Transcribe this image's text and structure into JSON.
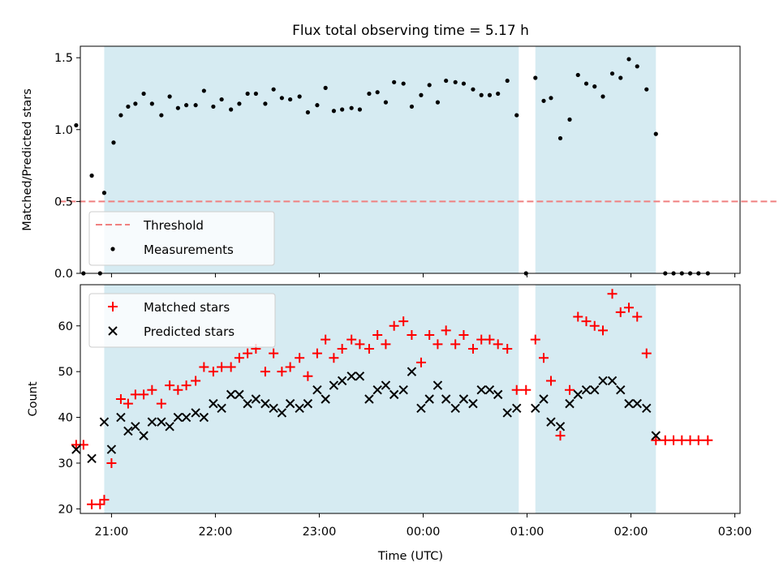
{
  "title": "Flux total observing time = 5.17 h",
  "colors": {
    "shade": "#add8e6",
    "threshold": "#f08080",
    "measurement": "#000000",
    "matched": "#ff0000",
    "predicted": "#000000"
  },
  "chart_data": [
    {
      "type": "scatter",
      "name": "ratio-panel",
      "ylabel": "Matched/Predicted stars",
      "ylim": [
        0,
        1.58
      ],
      "yticks": [
        0,
        0.5,
        1.0,
        1.5
      ],
      "ytick_labels": [
        "0.0",
        "0.5",
        "1.0",
        "1.5"
      ],
      "x_unit": "hours since 20:00 UTC",
      "xlim": [
        0.7,
        7.05
      ],
      "shaded_spans": [
        [
          0.93,
          4.92
        ],
        [
          5.08,
          6.24
        ]
      ],
      "threshold": {
        "label": "Threshold",
        "value": 0.5,
        "x_range": [
          0.5,
          7.4
        ]
      },
      "legend": {
        "position": "lower-left",
        "entries": [
          "Threshold",
          "Measurements"
        ]
      },
      "series": [
        {
          "name": "Measurements",
          "marker": "dot",
          "points": [
            [
              0.66,
              1.03
            ],
            [
              0.73,
              0.0
            ],
            [
              0.81,
              0.68
            ],
            [
              0.89,
              0.0
            ],
            [
              0.93,
              0.56
            ],
            [
              1.02,
              0.91
            ],
            [
              1.09,
              1.1
            ],
            [
              1.16,
              1.16
            ],
            [
              1.23,
              1.18
            ],
            [
              1.31,
              1.25
            ],
            [
              1.39,
              1.18
            ],
            [
              1.48,
              1.1
            ],
            [
              1.56,
              1.23
            ],
            [
              1.64,
              1.15
            ],
            [
              1.72,
              1.17
            ],
            [
              1.81,
              1.17
            ],
            [
              1.89,
              1.27
            ],
            [
              1.98,
              1.16
            ],
            [
              2.06,
              1.21
            ],
            [
              2.15,
              1.14
            ],
            [
              2.23,
              1.18
            ],
            [
              2.31,
              1.25
            ],
            [
              2.39,
              1.25
            ],
            [
              2.48,
              1.18
            ],
            [
              2.56,
              1.28
            ],
            [
              2.64,
              1.22
            ],
            [
              2.72,
              1.21
            ],
            [
              2.81,
              1.23
            ],
            [
              2.89,
              1.12
            ],
            [
              2.98,
              1.17
            ],
            [
              3.06,
              1.29
            ],
            [
              3.14,
              1.13
            ],
            [
              3.22,
              1.14
            ],
            [
              3.31,
              1.15
            ],
            [
              3.39,
              1.14
            ],
            [
              3.48,
              1.25
            ],
            [
              3.56,
              1.26
            ],
            [
              3.64,
              1.19
            ],
            [
              3.72,
              1.33
            ],
            [
              3.81,
              1.32
            ],
            [
              3.89,
              1.16
            ],
            [
              3.98,
              1.24
            ],
            [
              4.06,
              1.31
            ],
            [
              4.14,
              1.19
            ],
            [
              4.22,
              1.34
            ],
            [
              4.31,
              1.33
            ],
            [
              4.39,
              1.32
            ],
            [
              4.48,
              1.28
            ],
            [
              4.56,
              1.24
            ],
            [
              4.64,
              1.24
            ],
            [
              4.72,
              1.25
            ],
            [
              4.81,
              1.34
            ],
            [
              4.9,
              1.1
            ],
            [
              4.99,
              0.0
            ],
            [
              5.08,
              1.36
            ],
            [
              5.16,
              1.2
            ],
            [
              5.23,
              1.22
            ],
            [
              5.32,
              0.94
            ],
            [
              5.41,
              1.07
            ],
            [
              5.49,
              1.38
            ],
            [
              5.57,
              1.32
            ],
            [
              5.65,
              1.3
            ],
            [
              5.73,
              1.23
            ],
            [
              5.82,
              1.39
            ],
            [
              5.9,
              1.36
            ],
            [
              5.98,
              1.49
            ],
            [
              6.06,
              1.44
            ],
            [
              6.15,
              1.28
            ],
            [
              6.24,
              0.97
            ],
            [
              6.33,
              0.0
            ],
            [
              6.41,
              0.0
            ],
            [
              6.49,
              0.0
            ],
            [
              6.57,
              0.0
            ],
            [
              6.65,
              0.0
            ],
            [
              6.74,
              0.0
            ]
          ]
        }
      ]
    },
    {
      "type": "scatter",
      "name": "count-panel",
      "xlabel": "Time (UTC)",
      "ylabel": "Count",
      "ylim": [
        19,
        69
      ],
      "yticks": [
        20,
        30,
        40,
        50,
        60
      ],
      "ytick_labels": [
        "20",
        "30",
        "40",
        "50",
        "60"
      ],
      "x_unit": "hours since 20:00 UTC",
      "xlim": [
        0.7,
        7.05
      ],
      "xticks": [
        1,
        2,
        3,
        4,
        5,
        6,
        7
      ],
      "xtick_labels": [
        "21:00",
        "22:00",
        "23:00",
        "00:00",
        "01:00",
        "02:00",
        "03:00"
      ],
      "shaded_spans": [
        [
          0.93,
          4.92
        ],
        [
          5.08,
          6.24
        ]
      ],
      "legend": {
        "position": "upper-left",
        "entries": [
          "Matched stars",
          "Predicted stars"
        ]
      },
      "series": [
        {
          "name": "Matched stars",
          "marker": "plus",
          "points": [
            [
              0.66,
              34
            ],
            [
              0.73,
              34
            ],
            [
              0.81,
              21
            ],
            [
              0.89,
              21
            ],
            [
              0.93,
              22
            ],
            [
              1.0,
              30
            ],
            [
              1.09,
              44
            ],
            [
              1.16,
              43
            ],
            [
              1.23,
              45
            ],
            [
              1.31,
              45
            ],
            [
              1.39,
              46
            ],
            [
              1.48,
              43
            ],
            [
              1.56,
              47
            ],
            [
              1.64,
              46
            ],
            [
              1.72,
              47
            ],
            [
              1.81,
              48
            ],
            [
              1.89,
              51
            ],
            [
              1.98,
              50
            ],
            [
              2.06,
              51
            ],
            [
              2.15,
              51
            ],
            [
              2.23,
              53
            ],
            [
              2.31,
              54
            ],
            [
              2.39,
              55
            ],
            [
              2.48,
              50
            ],
            [
              2.56,
              54
            ],
            [
              2.64,
              50
            ],
            [
              2.72,
              51
            ],
            [
              2.81,
              53
            ],
            [
              2.89,
              49
            ],
            [
              2.98,
              54
            ],
            [
              3.06,
              57
            ],
            [
              3.14,
              53
            ],
            [
              3.22,
              55
            ],
            [
              3.31,
              57
            ],
            [
              3.39,
              56
            ],
            [
              3.48,
              55
            ],
            [
              3.56,
              58
            ],
            [
              3.64,
              56
            ],
            [
              3.72,
              60
            ],
            [
              3.81,
              61
            ],
            [
              3.89,
              58
            ],
            [
              3.98,
              52
            ],
            [
              4.06,
              58
            ],
            [
              4.14,
              56
            ],
            [
              4.22,
              59
            ],
            [
              4.31,
              56
            ],
            [
              4.39,
              58
            ],
            [
              4.48,
              55
            ],
            [
              4.56,
              57
            ],
            [
              4.64,
              57
            ],
            [
              4.72,
              56
            ],
            [
              4.81,
              55
            ],
            [
              4.9,
              46
            ],
            [
              4.99,
              46
            ],
            [
              5.08,
              57
            ],
            [
              5.16,
              53
            ],
            [
              5.23,
              48
            ],
            [
              5.32,
              36
            ],
            [
              5.41,
              46
            ],
            [
              5.49,
              62
            ],
            [
              5.57,
              61
            ],
            [
              5.65,
              60
            ],
            [
              5.73,
              59
            ],
            [
              5.82,
              67
            ],
            [
              5.9,
              63
            ],
            [
              5.98,
              64
            ],
            [
              6.06,
              62
            ],
            [
              6.15,
              54
            ],
            [
              6.24,
              35
            ],
            [
              6.33,
              35
            ],
            [
              6.41,
              35
            ],
            [
              6.49,
              35
            ],
            [
              6.57,
              35
            ],
            [
              6.65,
              35
            ],
            [
              6.74,
              35
            ]
          ]
        },
        {
          "name": "Predicted stars",
          "marker": "cross",
          "points": [
            [
              0.66,
              33
            ],
            [
              0.81,
              31
            ],
            [
              0.93,
              39
            ],
            [
              1.0,
              33
            ],
            [
              1.09,
              40
            ],
            [
              1.16,
              37
            ],
            [
              1.23,
              38
            ],
            [
              1.31,
              36
            ],
            [
              1.39,
              39
            ],
            [
              1.48,
              39
            ],
            [
              1.56,
              38
            ],
            [
              1.64,
              40
            ],
            [
              1.72,
              40
            ],
            [
              1.81,
              41
            ],
            [
              1.89,
              40
            ],
            [
              1.98,
              43
            ],
            [
              2.06,
              42
            ],
            [
              2.15,
              45
            ],
            [
              2.23,
              45
            ],
            [
              2.31,
              43
            ],
            [
              2.39,
              44
            ],
            [
              2.48,
              43
            ],
            [
              2.56,
              42
            ],
            [
              2.64,
              41
            ],
            [
              2.72,
              43
            ],
            [
              2.81,
              42
            ],
            [
              2.89,
              43
            ],
            [
              2.98,
              46
            ],
            [
              3.06,
              44
            ],
            [
              3.14,
              47
            ],
            [
              3.22,
              48
            ],
            [
              3.31,
              49
            ],
            [
              3.39,
              49
            ],
            [
              3.48,
              44
            ],
            [
              3.56,
              46
            ],
            [
              3.64,
              47
            ],
            [
              3.72,
              45
            ],
            [
              3.81,
              46
            ],
            [
              3.89,
              50
            ],
            [
              3.98,
              42
            ],
            [
              4.06,
              44
            ],
            [
              4.14,
              47
            ],
            [
              4.22,
              44
            ],
            [
              4.31,
              42
            ],
            [
              4.39,
              44
            ],
            [
              4.48,
              43
            ],
            [
              4.56,
              46
            ],
            [
              4.64,
              46
            ],
            [
              4.72,
              45
            ],
            [
              4.81,
              41
            ],
            [
              4.9,
              42
            ],
            [
              5.08,
              42
            ],
            [
              5.16,
              44
            ],
            [
              5.23,
              39
            ],
            [
              5.32,
              38
            ],
            [
              5.41,
              43
            ],
            [
              5.49,
              45
            ],
            [
              5.57,
              46
            ],
            [
              5.65,
              46
            ],
            [
              5.73,
              48
            ],
            [
              5.82,
              48
            ],
            [
              5.9,
              46
            ],
            [
              5.98,
              43
            ],
            [
              6.06,
              43
            ],
            [
              6.15,
              42
            ],
            [
              6.24,
              36
            ]
          ]
        }
      ]
    }
  ]
}
